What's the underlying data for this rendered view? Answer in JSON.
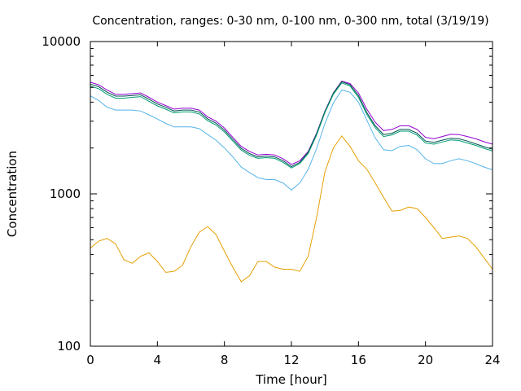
{
  "chart_data": {
    "type": "line",
    "title": "Concentration, ranges: 0-30 nm, 0-100 nm, 0-300 nm, total (3/19/19)",
    "xlabel": "Time [hour]",
    "ylabel": "Concentration",
    "xlim": [
      0,
      24
    ],
    "ylim": [
      100,
      10000
    ],
    "yscale": "log",
    "grid": false,
    "x_ticks": [
      0,
      4,
      8,
      12,
      16,
      20,
      24
    ],
    "x_tick_labels": [
      "0",
      "4",
      "8",
      "12",
      "16",
      "20",
      "24"
    ],
    "y_ticks": [
      100,
      1000,
      10000
    ],
    "y_tick_labels": [
      "100",
      "1000",
      "10000"
    ],
    "x": [
      0,
      0.5,
      1,
      1.5,
      2,
      2.5,
      3,
      3.5,
      4,
      4.5,
      5,
      5.5,
      6,
      6.5,
      7,
      7.5,
      8,
      8.5,
      9,
      9.5,
      10,
      10.5,
      11,
      11.5,
      12,
      12.5,
      13,
      13.5,
      14,
      14.5,
      15,
      15.5,
      16,
      16.5,
      17,
      17.5,
      18,
      18.5,
      19,
      19.5,
      20,
      20.5,
      21,
      21.5,
      22,
      22.5,
      23,
      23.5,
      24
    ],
    "series": [
      {
        "color": "#9400d3",
        "values": [
          5400,
          5200,
          4800,
          4500,
          4500,
          4550,
          4600,
          4300,
          4000,
          3800,
          3600,
          3650,
          3650,
          3550,
          3200,
          3000,
          2700,
          2350,
          2050,
          1900,
          1800,
          1820,
          1800,
          1700,
          1560,
          1650,
          1900,
          2500,
          3500,
          4600,
          5500,
          5300,
          4600,
          3600,
          2950,
          2600,
          2650,
          2800,
          2800,
          2650,
          2350,
          2300,
          2380,
          2460,
          2450,
          2380,
          2300,
          2200,
          2120
        ]
      },
      {
        "color": "#005050",
        "values": [
          5250,
          5050,
          4650,
          4380,
          4380,
          4420,
          4470,
          4180,
          3890,
          3700,
          3500,
          3550,
          3550,
          3450,
          3110,
          2910,
          2620,
          2280,
          1990,
          1840,
          1750,
          1770,
          1750,
          1650,
          1510,
          1610,
          1880,
          2480,
          3480,
          4580,
          5450,
          5200,
          4420,
          3420,
          2800,
          2450,
          2500,
          2650,
          2650,
          2500,
          2220,
          2180,
          2250,
          2320,
          2300,
          2220,
          2130,
          2040,
          1960
        ]
      },
      {
        "color": "#009e73",
        "values": [
          5100,
          4900,
          4500,
          4250,
          4250,
          4300,
          4350,
          4050,
          3780,
          3600,
          3400,
          3450,
          3450,
          3350,
          3020,
          2830,
          2550,
          2220,
          1940,
          1790,
          1710,
          1730,
          1710,
          1610,
          1480,
          1580,
          1840,
          2430,
          3420,
          4500,
          5350,
          5100,
          4300,
          3320,
          2720,
          2380,
          2440,
          2580,
          2580,
          2430,
          2160,
          2120,
          2190,
          2260,
          2240,
          2160,
          2080,
          1990,
          1910
        ]
      },
      {
        "color": "#56b4e9",
        "values": [
          4400,
          4100,
          3700,
          3550,
          3550,
          3550,
          3500,
          3300,
          3100,
          2900,
          2750,
          2750,
          2750,
          2680,
          2450,
          2250,
          2000,
          1750,
          1500,
          1380,
          1280,
          1240,
          1240,
          1180,
          1060,
          1180,
          1450,
          1980,
          2900,
          3950,
          4800,
          4650,
          4000,
          3050,
          2330,
          1950,
          1920,
          2050,
          2080,
          1950,
          1700,
          1580,
          1580,
          1650,
          1700,
          1650,
          1580,
          1500,
          1440
        ]
      },
      {
        "color": "#e69f00",
        "values": [
          440,
          490,
          510,
          470,
          370,
          350,
          390,
          410,
          360,
          305,
          310,
          340,
          450,
          560,
          610,
          540,
          420,
          330,
          265,
          290,
          360,
          360,
          330,
          320,
          320,
          310,
          390,
          700,
          1400,
          2000,
          2400,
          2050,
          1650,
          1450,
          1180,
          950,
          770,
          780,
          820,
          800,
          700,
          600,
          510,
          520,
          530,
          510,
          450,
          380,
          320
        ]
      }
    ]
  }
}
